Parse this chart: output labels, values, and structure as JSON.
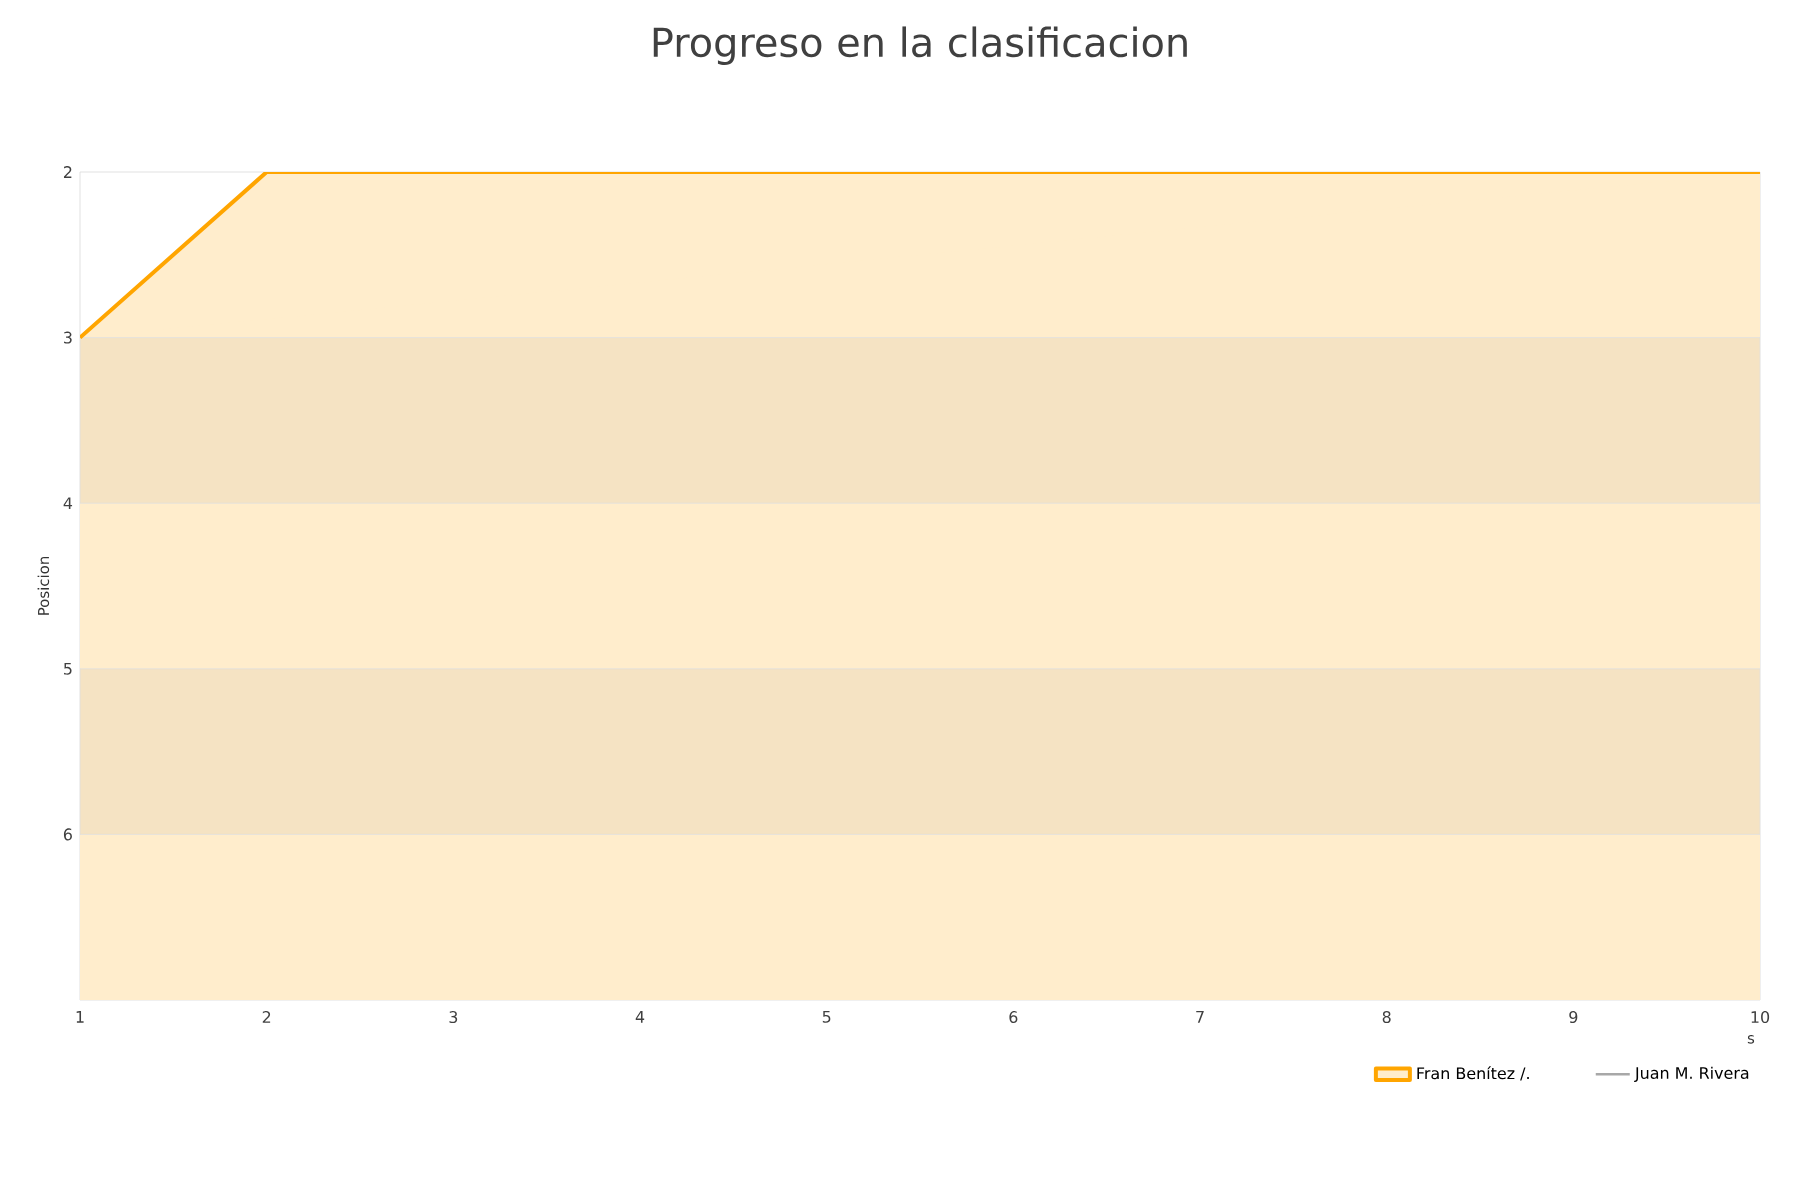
{
  "chart_data": {
    "type": "area",
    "title": "Progreso en la clasificacion",
    "xlabel": "s",
    "ylabel": "Posicion",
    "x": [
      1,
      2,
      3,
      4,
      5,
      6,
      7,
      8,
      9,
      10
    ],
    "series": [
      {
        "name": "Fran Benítez /.",
        "color": "#ffa500",
        "values": [
          3,
          2,
          2,
          2,
          2,
          2,
          2,
          2,
          2,
          2
        ]
      },
      {
        "name": "Juan M. Rivera",
        "type": "line",
        "color": "#a8a8a8",
        "values": [
          null,
          null,
          null,
          null,
          null,
          null,
          null,
          null,
          null,
          null
        ]
      }
    ],
    "xlim": [
      1,
      10
    ],
    "xticks": [
      1,
      2,
      3,
      4,
      5,
      6,
      7,
      8,
      9,
      10
    ],
    "ylim": [
      7,
      2
    ],
    "yticks": [
      2,
      3,
      4,
      5,
      6
    ],
    "bands": [
      {
        "axis": "y",
        "from": 3,
        "to": 4,
        "color": "#f5e3c3"
      },
      {
        "axis": "y",
        "from": 5,
        "to": 6,
        "color": "#f5e3c3"
      }
    ],
    "legend": "bottom right"
  }
}
